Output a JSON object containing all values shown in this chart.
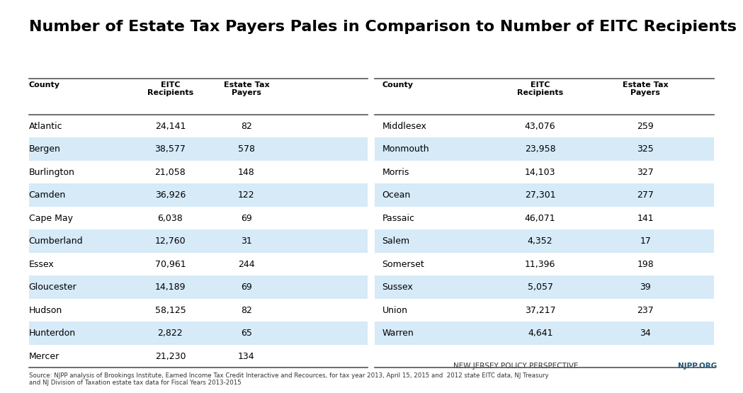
{
  "title": "Number of Estate Tax Payers Pales in Comparison to Number of EITC Recipients",
  "left_counties": [
    "Atlantic",
    "Bergen",
    "Burlington",
    "Camden",
    "Cape May",
    "Cumberland",
    "Essex",
    "Gloucester",
    "Hudson",
    "Hunterdon",
    "Mercer"
  ],
  "left_eitc": [
    "24,141",
    "38,577",
    "21,058",
    "36,926",
    "6,038",
    "12,760",
    "70,961",
    "14,189",
    "58,125",
    "2,822",
    "21,230"
  ],
  "left_estate": [
    "82",
    "578",
    "148",
    "122",
    "69",
    "31",
    "244",
    "69",
    "82",
    "65",
    "134"
  ],
  "right_counties": [
    "Middlesex",
    "Monmouth",
    "Morris",
    "Ocean",
    "Passaic",
    "Salem",
    "Somerset",
    "Sussex",
    "Union",
    "Warren"
  ],
  "right_eitc": [
    "43,076",
    "23,958",
    "14,103",
    "27,301",
    "46,071",
    "4,352",
    "11,396",
    "5,057",
    "37,217",
    "4,641"
  ],
  "right_estate": [
    "259",
    "325",
    "327",
    "277",
    "141",
    "17",
    "198",
    "39",
    "237",
    "34"
  ],
  "left_shaded": [
    1,
    3,
    5,
    7,
    9
  ],
  "right_shaded": [
    1,
    3,
    5,
    7,
    9
  ],
  "shaded_color": "#d6eaf8",
  "white_color": "#ffffff",
  "bg_color": "#ffffff",
  "title_fontsize": 16,
  "header_fontsize": 8.0,
  "cell_fontsize": 9.0,
  "source_text": "Source: NJPP analysis of Brookings Institute, Earned Income Tax Credit Interactive and Recources, for tax year 2013, April 15, 2015 and  2012 state EITC data, NJ Treasury\nand NJ Division of Taxation estate tax data for Fiscal Years 2013-2015",
  "footer_left": "NEW JERSEY POLICY PERSPECTIVE",
  "footer_right": "NJPP.ORG",
  "footer_right_color": "#1a5276",
  "line_color": "#555555"
}
